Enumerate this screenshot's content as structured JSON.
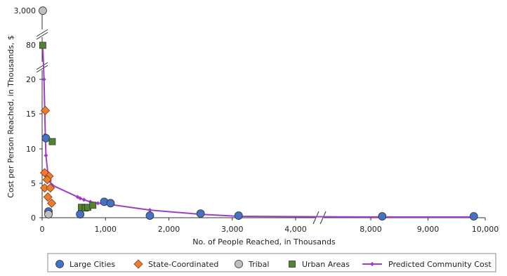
{
  "chart_data": {
    "type": "scatter",
    "title": "",
    "xlabel": "No. of People Reached, in Thousands",
    "ylabel": "Cost per Person Reached, in Thousands, $",
    "x_ticks": [
      {
        "value": 0,
        "label": "0"
      },
      {
        "value": 1000,
        "label": "1,000"
      },
      {
        "value": 2000,
        "label": "2,000"
      },
      {
        "value": 3000,
        "label": "3,000"
      },
      {
        "value": 4000,
        "label": "4,000"
      },
      {
        "value": 8000,
        "label": "8,000"
      },
      {
        "value": 9000,
        "label": "9,000"
      },
      {
        "value": 10000,
        "label": "10,000"
      }
    ],
    "x_break": [
      4400,
      7500
    ],
    "y_ticks": [
      {
        "value": 0,
        "label": "0"
      },
      {
        "value": 5,
        "label": "5"
      },
      {
        "value": 10,
        "label": "10"
      },
      {
        "value": 15,
        "label": "15"
      },
      {
        "value": 20,
        "label": "20"
      },
      {
        "value": 80,
        "label": "80"
      },
      {
        "value": 3000,
        "label": "3,000"
      }
    ],
    "y_breaks": [
      "between 20 and 80",
      "between 80 and 3,000"
    ],
    "grid": false,
    "legend_position": "bottom",
    "series": [
      {
        "name": "Large Cities",
        "marker": "circle",
        "color": "#4472C4",
        "points": [
          [
            60,
            11.5
          ],
          [
            100,
            0.9
          ],
          [
            600,
            0.5
          ],
          [
            980,
            2.3
          ],
          [
            1080,
            2.1
          ],
          [
            1700,
            0.3
          ],
          [
            2500,
            0.6
          ],
          [
            3100,
            0.3
          ],
          [
            8200,
            0.2
          ],
          [
            9800,
            0.2
          ]
        ]
      },
      {
        "name": "State-Coordinated",
        "marker": "diamond",
        "color": "#ED7D31",
        "points": [
          [
            50,
            15.5
          ],
          [
            40,
            6.5
          ],
          [
            110,
            6.0
          ],
          [
            80,
            5.5
          ],
          [
            40,
            4.3
          ],
          [
            130,
            4.3
          ],
          [
            90,
            3.0
          ],
          [
            150,
            2.1
          ]
        ]
      },
      {
        "name": "Tribal",
        "marker": "circle",
        "color": "#BFBFBF",
        "points": [
          [
            10,
            2900
          ],
          [
            100,
            0.5
          ]
        ]
      },
      {
        "name": "Urban Areas",
        "marker": "square",
        "color": "#548235",
        "points": [
          [
            10,
            79
          ],
          [
            160,
            11
          ],
          [
            620,
            1.5
          ],
          [
            680,
            1.4
          ],
          [
            720,
            1.5
          ],
          [
            800,
            1.8
          ]
        ]
      },
      {
        "name": "Predicted Community Cost",
        "marker": "line-diamond",
        "color": "#A03DC6",
        "points": [
          [
            10,
            76
          ],
          [
            30,
            20
          ],
          [
            50,
            12
          ],
          [
            60,
            9
          ],
          [
            90,
            6.5
          ],
          [
            120,
            5.3
          ],
          [
            160,
            4.7
          ],
          [
            560,
            3.0
          ],
          [
            600,
            2.8
          ],
          [
            660,
            2.6
          ],
          [
            760,
            2.3
          ],
          [
            880,
            2.1
          ],
          [
            1080,
            1.9
          ],
          [
            1700,
            1.1
          ],
          [
            2500,
            0.5
          ],
          [
            3100,
            0.2
          ],
          [
            8200,
            0.1
          ],
          [
            9800,
            0.1
          ]
        ]
      }
    ]
  }
}
